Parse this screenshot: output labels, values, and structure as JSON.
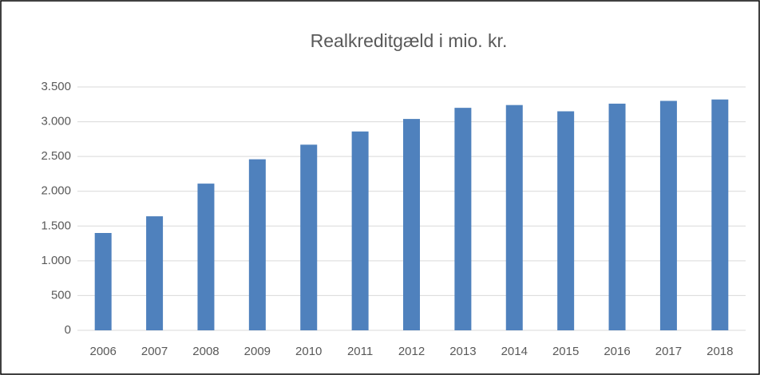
{
  "chart_data": {
    "type": "bar",
    "title": "Realkreditgæld i mio. kr.",
    "categories": [
      "2006",
      "2007",
      "2008",
      "2009",
      "2010",
      "2011",
      "2012",
      "2013",
      "2014",
      "2015",
      "2016",
      "2017",
      "2018"
    ],
    "values": [
      1400,
      1640,
      2110,
      2460,
      2670,
      2860,
      3040,
      3200,
      3240,
      3150,
      3260,
      3300,
      3320
    ],
    "color": "#4f81bd",
    "ylim": [
      0,
      3500
    ],
    "yticks": [
      0,
      500,
      {
        "value": 1000,
        "label": "1.000"
      },
      {
        "value": 1500,
        "label": "1.500"
      },
      {
        "value": 2000,
        "label": "2.000"
      },
      {
        "value": 2500,
        "label": "2.500"
      },
      {
        "value": 3000,
        "label": "3.000"
      },
      {
        "value": 3500,
        "label": "3.500"
      }
    ],
    "grid": true
  }
}
